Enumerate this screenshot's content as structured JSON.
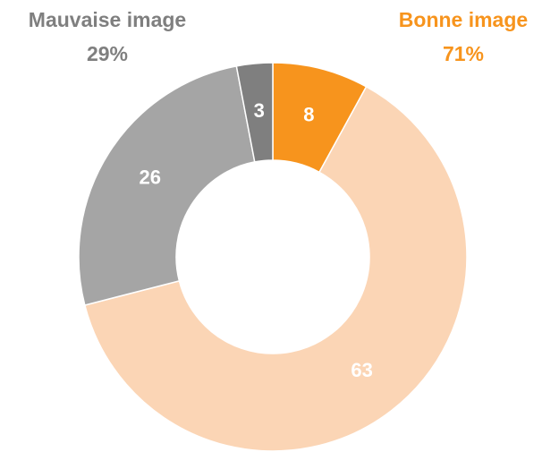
{
  "chart_data": {
    "type": "donut",
    "categories": [
      null,
      null,
      null,
      null
    ],
    "values": [
      8,
      63,
      26,
      3
    ],
    "colors": [
      "#f7941d",
      "#fbd5b5",
      "#a5a5a5",
      "#7f7f7f"
    ],
    "groups": [
      {
        "name": "Mauvaise image",
        "value": 29,
        "value_label": "29%",
        "color": "#7f7f7f"
      },
      {
        "name": "Bonne image",
        "value": 71,
        "value_label": "71%",
        "color": "#f7941d"
      }
    ]
  }
}
